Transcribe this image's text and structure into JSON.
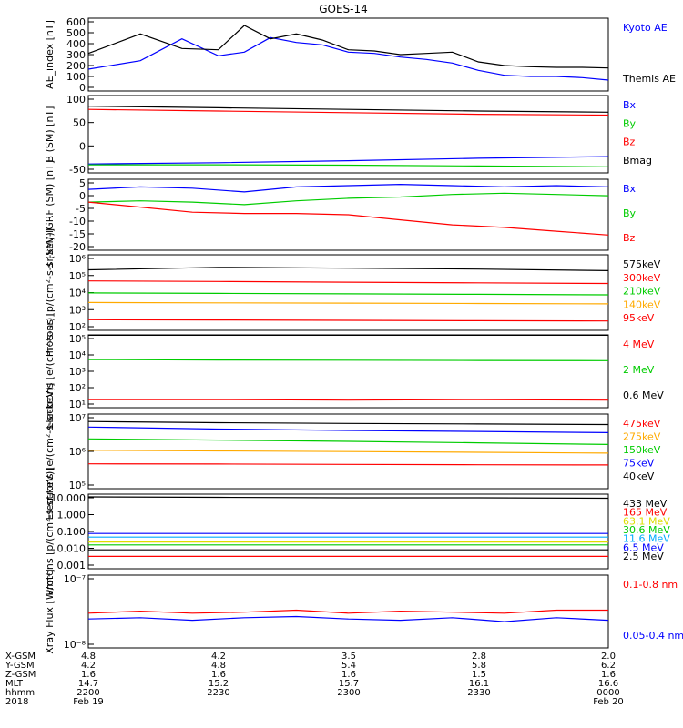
{
  "title": "GOES-14",
  "time_labels": [
    "Feb 19",
    "Feb 20"
  ],
  "ephemeris": {
    "row_labels": [
      "X-GSM",
      "Y-GSM",
      "Z-GSM",
      "MLT",
      "hhmm",
      "2018"
    ],
    "columns": [
      {
        "X-GSM": "4.8",
        "Y-GSM": "4.2",
        "Z-GSM": "1.6",
        "MLT": "14.7",
        "hhmm": "2200",
        "date": "Feb 19"
      },
      {
        "X-GSM": "4.2",
        "Y-GSM": "4.8",
        "Z-GSM": "1.6",
        "MLT": "15.2",
        "hhmm": "2230",
        "date": ""
      },
      {
        "X-GSM": "3.5",
        "Y-GSM": "5.4",
        "Z-GSM": "1.6",
        "MLT": "15.7",
        "hhmm": "2300",
        "date": ""
      },
      {
        "X-GSM": "2.8",
        "Y-GSM": "5.8",
        "Z-GSM": "1.5",
        "MLT": "16.1",
        "hhmm": "2330",
        "date": ""
      },
      {
        "X-GSM": "2.0",
        "Y-GSM": "6.2",
        "Z-GSM": "1.6",
        "MLT": "16.6",
        "hhmm": "0000",
        "date": "Feb 20"
      }
    ]
  },
  "chart_data": [
    {
      "type": "line",
      "ylabel": "AE_index [nT]",
      "ylim": [
        0,
        600
      ],
      "yticks": [
        "600",
        "500",
        "400",
        "300",
        "200",
        "100",
        "0"
      ],
      "x": [
        0,
        0.1,
        0.18,
        0.25,
        0.3,
        0.35,
        0.4,
        0.45,
        0.5,
        0.55,
        0.6,
        0.65,
        0.7,
        0.75,
        0.8,
        0.85,
        0.9,
        0.95,
        1.0
      ],
      "series": [
        {
          "name": "Kyoto AE",
          "color": "#0000ff",
          "values": [
            180,
            250,
            430,
            290,
            320,
            440,
            400,
            380,
            320,
            310,
            280,
            260,
            230,
            170,
            130,
            120,
            120,
            110,
            90
          ]
        },
        {
          "name": "Themis AE",
          "color": "#000000",
          "values": [
            310,
            470,
            350,
            340,
            540,
            430,
            470,
            420,
            340,
            330,
            300,
            310,
            320,
            240,
            210,
            200,
            195,
            195,
            190
          ]
        }
      ]
    },
    {
      "type": "line",
      "ylabel": "B (SM) [nT]",
      "ylim": [
        -60,
        130
      ],
      "yticks": [
        "100",
        "50",
        "0",
        "-50"
      ],
      "x": [
        0,
        0.25,
        0.5,
        0.75,
        1.0
      ],
      "series": [
        {
          "name": "Bx",
          "color": "#0000ff",
          "values": [
            -38,
            -35,
            -30,
            -24,
            -20
          ]
        },
        {
          "name": "By",
          "color": "#00cc00",
          "values": [
            -40,
            -40,
            -41,
            -43,
            -45
          ]
        },
        {
          "name": "Bz",
          "color": "#ff0000",
          "values": [
            96,
            92,
            88,
            84,
            82
          ]
        },
        {
          "name": "Bmag",
          "color": "#000000",
          "values": [
            104,
            100,
            96,
            92,
            89
          ]
        }
      ]
    },
    {
      "type": "line",
      "ylabel": "B (SM)-IGRF (SM) [nT]",
      "ylim": [
        -22,
        6
      ],
      "yticks": [
        "5",
        "0",
        "-5",
        "-10",
        "-15",
        "-20"
      ],
      "x": [
        0,
        0.1,
        0.2,
        0.3,
        0.4,
        0.5,
        0.6,
        0.7,
        0.8,
        0.9,
        1.0
      ],
      "series": [
        {
          "name": "Bx",
          "color": "#0000ff",
          "values": [
            2,
            3,
            2.5,
            1,
            3,
            3.5,
            4,
            3.5,
            3,
            3.5,
            3
          ]
        },
        {
          "name": "By",
          "color": "#00cc00",
          "values": [
            -3,
            -2.5,
            -3,
            -4,
            -2.5,
            -1.5,
            -1,
            0,
            0.5,
            0,
            -0.5
          ]
        },
        {
          "name": "Bz",
          "color": "#ff0000",
          "values": [
            -3,
            -5,
            -7,
            -7.5,
            -7.5,
            -8,
            -10,
            -12,
            -13,
            -14.5,
            -16
          ]
        }
      ]
    },
    {
      "type": "line",
      "ylabel": "Protons [p/(cm²-s-sr-keV)]",
      "yscale": "log",
      "ylim": [
        60,
        1500000
      ],
      "yticks": [
        "10⁶",
        "10⁵",
        "10⁴",
        "10³",
        "10²"
      ],
      "x": [
        0,
        0.25,
        0.5,
        0.75,
        1.0
      ],
      "series": [
        {
          "name": "575keV",
          "color": "#000000",
          "values": [
            200000,
            280000,
            250000,
            220000,
            180000
          ]
        },
        {
          "name": "300keV",
          "color": "#ff0000",
          "values": [
            45000,
            42000,
            38000,
            35000,
            32000
          ]
        },
        {
          "name": "210keV",
          "color": "#00cc00",
          "values": [
            9000,
            8500,
            8000,
            7500,
            7000
          ]
        },
        {
          "name": "140keV",
          "color": "#ffaa00",
          "values": [
            2500,
            2400,
            2300,
            2200,
            2100
          ]
        },
        {
          "name": "95keV",
          "color": "#ff0000",
          "values": [
            250,
            240,
            230,
            220,
            210
          ]
        }
      ]
    },
    {
      "type": "line",
      "ylabel": "Electrons [e/(cm²-s-sr)]",
      "yscale": "log",
      "ylim": [
        5,
        100000
      ],
      "yticks": [
        "10⁵",
        "10⁴",
        "10³",
        "10²",
        "10¹"
      ],
      "x": [
        0,
        0.25,
        0.5,
        0.75,
        1.0
      ],
      "series": [
        {
          "name": "4 MeV",
          "color": "#ff0000",
          "values": [
            15,
            15,
            14,
            15,
            14
          ]
        },
        {
          "name": "2 MeV",
          "color": "#00cc00",
          "values": [
            3500,
            3300,
            3200,
            3100,
            3000
          ]
        },
        {
          "name": "0.6 MeV",
          "color": "#000000",
          "values": [
            95000,
            95000,
            95000,
            95000,
            95000
          ]
        }
      ]
    },
    {
      "type": "line",
      "ylabel": "Electrons [e/(cm²-s-sr-keV)]",
      "yscale": "log",
      "ylim": [
        10000,
        10000000
      ],
      "yticks": [
        "10⁷",
        "10⁶",
        "10⁵"
      ],
      "x": [
        0,
        0.25,
        0.5,
        0.75,
        1.0
      ],
      "series": [
        {
          "name": "475keV",
          "color": "#ff0000",
          "values": [
            100000,
            98000,
            95000,
            92000,
            90000
          ]
        },
        {
          "name": "275keV",
          "color": "#ffaa00",
          "values": [
            350000,
            330000,
            310000,
            290000,
            270000
          ]
        },
        {
          "name": "150keV",
          "color": "#00cc00",
          "values": [
            1000000,
            900000,
            800000,
            700000,
            600000
          ]
        },
        {
          "name": "75keV",
          "color": "#0000ff",
          "values": [
            3000000,
            2500000,
            2200000,
            2000000,
            1800000
          ]
        },
        {
          "name": "40keV",
          "color": "#000000",
          "values": [
            5000000,
            4500000,
            4200000,
            4000000,
            3800000
          ]
        }
      ]
    },
    {
      "type": "line",
      "ylabel": "Protons [p/(cm²-s-sr-keV)]",
      "yscale": "log",
      "ylim": [
        0.0007,
        25
      ],
      "yticks": [
        "10.000",
        "1.000",
        "0.100",
        "0.010",
        "0.001"
      ],
      "x": [
        0,
        0.25,
        0.5,
        0.75,
        1.0
      ],
      "series": [
        {
          "name": "433 MeV",
          "color": "#000000",
          "values": [
            17,
            16,
            15,
            15,
            14
          ]
        },
        {
          "name": "165 MeV",
          "color": "#ff0000",
          "values": [
            0.004,
            0.004,
            0.004,
            0.004,
            0.004
          ]
        },
        {
          "name": "63.1 MeV",
          "color": "#dddd00",
          "values": [
            0.03,
            0.03,
            0.03,
            0.03,
            0.03
          ]
        },
        {
          "name": "30.6 MeV",
          "color": "#00cc00",
          "values": [
            0.02,
            0.02,
            0.02,
            0.02,
            0.02
          ]
        },
        {
          "name": "11.6 MeV",
          "color": "#00aaff",
          "values": [
            0.06,
            0.06,
            0.06,
            0.06,
            0.06
          ]
        },
        {
          "name": "6.5 MeV",
          "color": "#0000ff",
          "values": [
            0.1,
            0.1,
            0.1,
            0.1,
            0.1
          ]
        },
        {
          "name": "2.5 MeV",
          "color": "#000000",
          "values": [
            0.01,
            0.01,
            0.01,
            0.01,
            0.01
          ]
        }
      ]
    },
    {
      "type": "line",
      "ylabel": "Xray Flux [W/m²]",
      "yscale": "log",
      "ylim": [
        1e-08,
        1e-07
      ],
      "yticks": [
        "10⁻⁷",
        "10⁻⁸"
      ],
      "x": [
        0,
        0.1,
        0.2,
        0.3,
        0.4,
        0.5,
        0.6,
        0.7,
        0.8,
        0.9,
        1.0
      ],
      "series": [
        {
          "name": "0.1-0.8 nm",
          "color": "#ff0000",
          "values": [
            3e-08,
            3.2e-08,
            3e-08,
            3.1e-08,
            3.3e-08,
            3e-08,
            3.2e-08,
            3.1e-08,
            3e-08,
            3.3e-08,
            3.3e-08
          ]
        },
        {
          "name": "0.05-0.4 nm",
          "color": "#0000ff",
          "values": [
            2.5e-08,
            2.6e-08,
            2.4e-08,
            2.6e-08,
            2.7e-08,
            2.5e-08,
            2.4e-08,
            2.6e-08,
            2.3e-08,
            2.6e-08,
            2.4e-08
          ]
        }
      ]
    }
  ]
}
